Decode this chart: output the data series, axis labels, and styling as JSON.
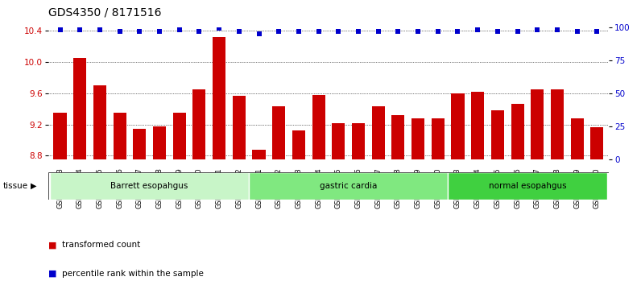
{
  "title": "GDS4350 / 8171516",
  "samples": [
    "GSM851983",
    "GSM851984",
    "GSM851985",
    "GSM851986",
    "GSM851987",
    "GSM851988",
    "GSM851989",
    "GSM851990",
    "GSM851991",
    "GSM851992",
    "GSM852001",
    "GSM852002",
    "GSM852003",
    "GSM852004",
    "GSM852005",
    "GSM852006",
    "GSM852007",
    "GSM852008",
    "GSM852009",
    "GSM852010",
    "GSM851993",
    "GSM851994",
    "GSM851995",
    "GSM851996",
    "GSM851997",
    "GSM851998",
    "GSM851999",
    "GSM852000"
  ],
  "bar_values": [
    9.35,
    10.05,
    9.7,
    9.35,
    9.15,
    9.18,
    9.35,
    9.65,
    10.32,
    9.57,
    8.88,
    9.43,
    9.12,
    9.58,
    9.22,
    9.22,
    9.43,
    9.32,
    9.28,
    9.28,
    9.6,
    9.62,
    9.38,
    9.47,
    9.65,
    9.65,
    9.28,
    9.17
  ],
  "percentile_values": [
    98,
    98,
    98,
    97,
    97,
    97,
    98,
    97,
    99,
    97,
    95,
    97,
    97,
    97,
    97,
    97,
    97,
    97,
    97,
    97,
    97,
    98,
    97,
    97,
    98,
    98,
    97,
    97
  ],
  "groups": [
    {
      "label": "Barrett esopahgus",
      "start": 0,
      "end": 10,
      "color": "#c8f5c8"
    },
    {
      "label": "gastric cardia",
      "start": 10,
      "end": 20,
      "color": "#80e880"
    },
    {
      "label": "normal esopahgus",
      "start": 20,
      "end": 28,
      "color": "#40d040"
    }
  ],
  "ylim_left": [
    8.75,
    10.45
  ],
  "ylim_right": [
    0,
    100
  ],
  "yticks_left": [
    8.8,
    9.2,
    9.6,
    10.0,
    10.4
  ],
  "yticks_right": [
    0,
    25,
    50,
    75,
    100
  ],
  "bar_color": "#cc0000",
  "dot_color": "#0000cc",
  "grid_color": "#000000"
}
